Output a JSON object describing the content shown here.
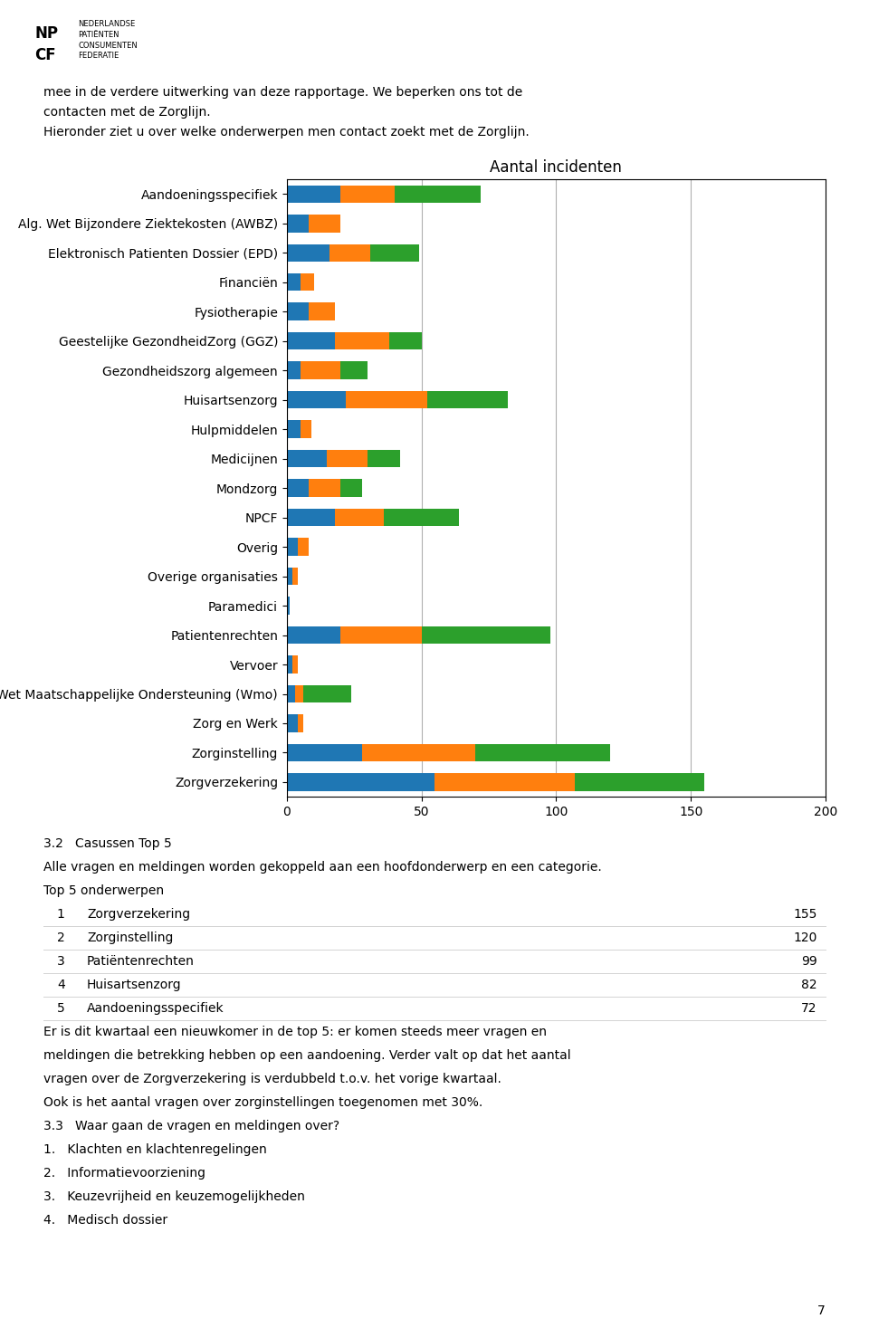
{
  "chart_data": {
    "type": "bar",
    "orientation": "horizontal",
    "stacked": true,
    "title": "Aantal incidenten",
    "categories": [
      "Aandoeningsspecifiek",
      "Alg. Wet Bijzondere Ziektekosten (AWBZ)",
      "Elektronisch Patienten Dossier (EPD)",
      "Financiën",
      "Fysiotherapie",
      "Geestelijke GezondheidZorg (GGZ)",
      "Gezondheidszorg algemeen",
      "Huisartsenzorg",
      "Hulpmiddelen",
      "Medicijnen",
      "Mondzorg",
      "NPCF",
      "Overig",
      "Overige organisaties",
      "Paramedici",
      "Patientenrechten",
      "Vervoer",
      "Wet Maatschappelijke Ondersteuning (Wmo)",
      "Zorg en Werk",
      "Zorginstelling",
      "Zorgverzekering"
    ],
    "series": [
      {
        "values": [
          20,
          8,
          16,
          5,
          8,
          18,
          5,
          22,
          5,
          15,
          8,
          18,
          4,
          2,
          1,
          20,
          2,
          3,
          4,
          28,
          55
        ]
      },
      {
        "values": [
          20,
          12,
          15,
          5,
          10,
          20,
          15,
          30,
          4,
          15,
          12,
          18,
          4,
          2,
          0,
          30,
          2,
          3,
          2,
          42,
          52
        ]
      },
      {
        "values": [
          32,
          0,
          18,
          0,
          0,
          12,
          10,
          30,
          0,
          12,
          8,
          28,
          0,
          0,
          0,
          48,
          0,
          18,
          0,
          50,
          48
        ]
      }
    ],
    "xlim": [
      0,
      200
    ],
    "xticks": [
      0,
      50,
      100,
      150,
      200
    ],
    "grid": true,
    "annotations": [
      "NP",
      "CF",
      "NEDERLANDSE\nPATIËNTEN\nCONSUMENTEN\nFEDERATIE",
      "mee in de verdere uitwerking van deze rapportage. We beperken ons tot de",
      "contacten met de Zorglijn.",
      "Hieronder ziet u over welke onderwerpen men contact zoekt met de Zorglijn.",
      "3.2   Casussen Top 5",
      "Alle vragen en meldingen worden gekoppeld aan een hoofdonderwerp en een categorie.",
      "Top 5 onderwerpen",
      [
        "1",
        "Zorgverzekering",
        "155"
      ],
      [
        "2",
        "Zorginstelling",
        "120"
      ],
      [
        "3",
        "Patiëntenrechten",
        "99"
      ],
      [
        "4",
        "Huisartsenzorg",
        "82"
      ],
      [
        "5",
        "Aandoeningsspecifiek",
        "72"
      ],
      "Er is dit kwartaal een nieuwkomer in de top 5: er komen steeds meer vragen en",
      "meldingen die betrekking hebben op een aandoening. Verder valt op dat het aantal",
      "vragen over de Zorgverzekering is verdubbeld t.o.v. het vorige kwartaal.",
      "Ook is het aantal vragen over zorginstellingen toegenomen met 30%.",
      "3.3   Waar gaan de vragen en meldingen over?",
      "1.   Klachten en klachtenregelingen",
      "2.   Informatievoorziening",
      "3.   Keuzevrijheid en keuzemogelijkheden",
      "4.   Medisch dossier",
      "7"
    ]
  }
}
